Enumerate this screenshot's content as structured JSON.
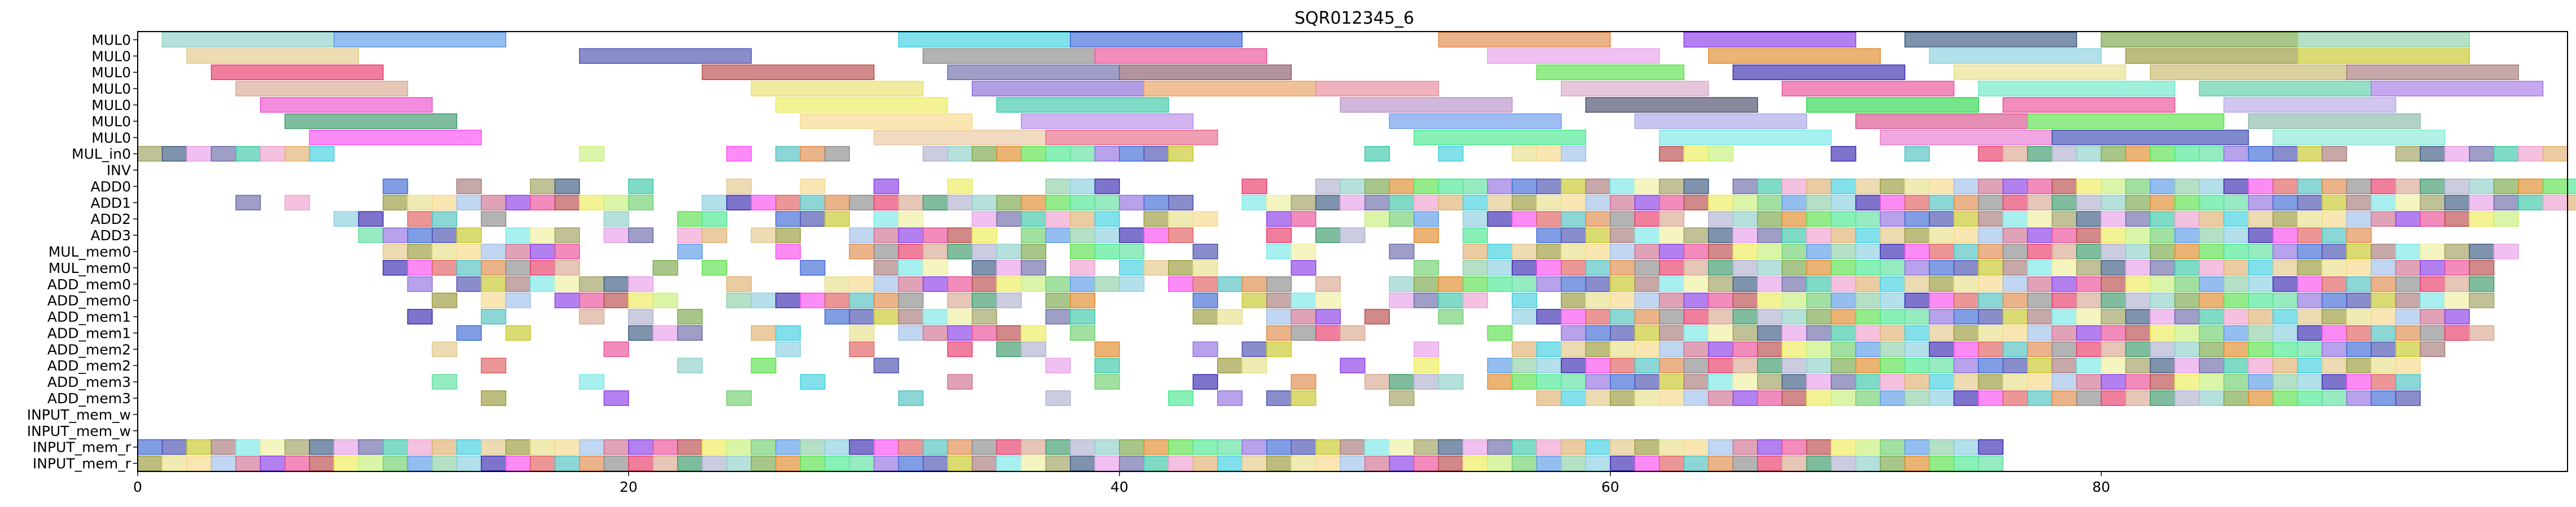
{
  "chart_data": {
    "type": "gantt",
    "title": "SQR012345_6",
    "xlabel": "",
    "ylabel": "",
    "xlim": [
      0,
      99
    ],
    "x_ticks": [
      0,
      20,
      40,
      60,
      80
    ],
    "grid": false,
    "legend": "none",
    "rows": [
      "MUL0",
      "MUL0",
      "MUL0",
      "MUL0",
      "MUL0",
      "MUL0",
      "MUL0",
      "MUL_in0",
      "INV",
      "ADD0",
      "ADD1",
      "ADD2",
      "ADD3",
      "MUL_mem0",
      "MUL_mem0",
      "ADD_mem0",
      "ADD_mem0",
      "ADD_mem1",
      "ADD_mem1",
      "ADD_mem2",
      "ADD_mem2",
      "ADD_mem3",
      "ADD_mem3",
      "INPUT_mem_w",
      "INPUT_mem_w",
      "INPUT_mem_r",
      "INPUT_mem_r"
    ],
    "long_tasks": [
      {
        "row": 0,
        "start": 1,
        "end": 8,
        "color": "#8fd0c8"
      },
      {
        "row": 0,
        "start": 8,
        "end": 15,
        "color": "#5b9be6"
      },
      {
        "row": 0,
        "start": 31,
        "end": 38,
        "color": "#3fd0e0"
      },
      {
        "row": 0,
        "start": 38,
        "end": 45,
        "color": "#3d6ad6"
      },
      {
        "row": 0,
        "start": 53,
        "end": 60,
        "color": "#e08a4a"
      },
      {
        "row": 0,
        "start": 63,
        "end": 70,
        "color": "#8a3ee6"
      },
      {
        "row": 0,
        "start": 72,
        "end": 79,
        "color": "#3a5a80"
      },
      {
        "row": 0,
        "start": 80,
        "end": 88,
        "color": "#7aa84a"
      },
      {
        "row": 0,
        "start": 88,
        "end": 95,
        "color": "#8ed0a8"
      },
      {
        "row": 1,
        "start": 2,
        "end": 9,
        "color": "#e2c88a"
      },
      {
        "row": 1,
        "start": 18,
        "end": 25,
        "color": "#4a50b0"
      },
      {
        "row": 1,
        "start": 32,
        "end": 39,
        "color": "#8a8a8a"
      },
      {
        "row": 1,
        "start": 39,
        "end": 46,
        "color": "#ea4e9a"
      },
      {
        "row": 1,
        "start": 55,
        "end": 62,
        "color": "#e8a0e8"
      },
      {
        "row": 1,
        "start": 64,
        "end": 71,
        "color": "#e08a2a"
      },
      {
        "row": 1,
        "start": 73,
        "end": 80,
        "color": "#8ad0e0"
      },
      {
        "row": 1,
        "start": 81,
        "end": 88,
        "color": "#9a9a3a"
      },
      {
        "row": 1,
        "start": 88,
        "end": 95,
        "color": "#c8c82a"
      },
      {
        "row": 2,
        "start": 3,
        "end": 10,
        "color": "#e83a6a"
      },
      {
        "row": 2,
        "start": 23,
        "end": 30,
        "color": "#b84a4a"
      },
      {
        "row": 2,
        "start": 33,
        "end": 40,
        "color": "#6a6aa8"
      },
      {
        "row": 2,
        "start": 40,
        "end": 47,
        "color": "#8a5a6a"
      },
      {
        "row": 2,
        "start": 57,
        "end": 63,
        "color": "#5ae04a"
      },
      {
        "row": 2,
        "start": 65,
        "end": 72,
        "color": "#3a2ab0"
      },
      {
        "row": 2,
        "start": 74,
        "end": 81,
        "color": "#e8e08a"
      },
      {
        "row": 2,
        "start": 82,
        "end": 90,
        "color": "#c8b86a"
      },
      {
        "row": 2,
        "start": 90,
        "end": 97,
        "color": "#a87a7a"
      },
      {
        "row": 3,
        "start": 4,
        "end": 11,
        "color": "#d8a890"
      },
      {
        "row": 3,
        "start": 25,
        "end": 32,
        "color": "#e8e06a"
      },
      {
        "row": 3,
        "start": 34,
        "end": 41,
        "color": "#8a6ad8"
      },
      {
        "row": 3,
        "start": 41,
        "end": 48,
        "color": "#e8a05a"
      },
      {
        "row": 3,
        "start": 48,
        "end": 53,
        "color": "#e88a9a"
      },
      {
        "row": 3,
        "start": 58,
        "end": 64,
        "color": "#d8a8c8"
      },
      {
        "row": 3,
        "start": 67,
        "end": 74,
        "color": "#ea4e9a"
      },
      {
        "row": 3,
        "start": 75,
        "end": 83,
        "color": "#6ae8c8"
      },
      {
        "row": 3,
        "start": 84,
        "end": 91,
        "color": "#5ad0a8"
      },
      {
        "row": 3,
        "start": 91,
        "end": 98,
        "color": "#a87ae8"
      },
      {
        "row": 4,
        "start": 5,
        "end": 12,
        "color": "#ea4ecc"
      },
      {
        "row": 4,
        "start": 26,
        "end": 33,
        "color": "#ecec5a"
      },
      {
        "row": 4,
        "start": 35,
        "end": 42,
        "color": "#3ac8a8"
      },
      {
        "row": 4,
        "start": 49,
        "end": 56,
        "color": "#b890c8"
      },
      {
        "row": 4,
        "start": 59,
        "end": 66,
        "color": "#4a4a6a"
      },
      {
        "row": 4,
        "start": 68,
        "end": 75,
        "color": "#2ad84a"
      },
      {
        "row": 4,
        "start": 76,
        "end": 83,
        "color": "#ea4e9a"
      },
      {
        "row": 4,
        "start": 85,
        "end": 92,
        "color": "#b8a8e8"
      },
      {
        "row": 5,
        "start": 6,
        "end": 13,
        "color": "#3a9a6a"
      },
      {
        "row": 5,
        "start": 27,
        "end": 34,
        "color": "#f8d88a"
      },
      {
        "row": 5,
        "start": 36,
        "end": 43,
        "color": "#b88ae8"
      },
      {
        "row": 5,
        "start": 51,
        "end": 58,
        "color": "#6a9ae8"
      },
      {
        "row": 5,
        "start": 61,
        "end": 68,
        "color": "#a8a8e8"
      },
      {
        "row": 5,
        "start": 70,
        "end": 77,
        "color": "#d8508a"
      },
      {
        "row": 5,
        "start": 77,
        "end": 85,
        "color": "#5ae04a"
      },
      {
        "row": 5,
        "start": 86,
        "end": 93,
        "color": "#8abaa8"
      },
      {
        "row": 6,
        "start": 7,
        "end": 14,
        "color": "#fa4ef0"
      },
      {
        "row": 6,
        "start": 30,
        "end": 37,
        "color": "#e8c8a0"
      },
      {
        "row": 6,
        "start": 37,
        "end": 44,
        "color": "#e86a8a"
      },
      {
        "row": 6,
        "start": 52,
        "end": 59,
        "color": "#4ae890"
      },
      {
        "row": 6,
        "start": 62,
        "end": 69,
        "color": "#7ae8e8"
      },
      {
        "row": 6,
        "start": 71,
        "end": 78,
        "color": "#ea7ad0"
      },
      {
        "row": 6,
        "start": 78,
        "end": 86,
        "color": "#3a4ab0"
      },
      {
        "row": 6,
        "start": 87,
        "end": 94,
        "color": "#8ae8d8"
      }
    ],
    "short_task_occupancy": [
      "",
      "",
      "",
      "",
      "",
      "",
      "",
      "xxxxxxxx..........x.....x.xxx...xxxxxxxxxxx.......x..x..xxx...xxx....x..x..xxxxxxxxxxxxxxx..xxxxxxx..........",
      "",
      "..........x..x..xx..x...x..x..x..x...xxx.....x..xxxxxxxxxxxxxxxx.xxxxxxxxxxxxxxxxxxxxxxxxxxxxxxxxxxxxx......",
      "....x.x...xxxxxxxxxxx..xxxxxxxxxxxxxxxxxxxx..xxxxxxxxxxxxxxxxxxxxxxxxxxxxxxxxxxxxxxxxxxxxxxxxxxxxxxxxxxx.....",
      "........xx.xx.x....x..xx..xxx.xx..xxxxxx.xxx..xx..xxx.xxxxxxxxx.xxxxxxxxxxxxxxxxxxxxxxxxxxxxxxxxx............",
      ".........xxxxx.xxx.xx.xx.xx..xxxxxx.xxxxxxx...x.xx..x.x..xxxxxxxxxxxxxxxxxxxxxxxxxxxxxxxxxx................",
      "..........xxxxxxxx....x...x..xxxxxxxx.xxx..x..xx...x..xxxxxxxxxxxxxxxxxxxxxxxxxxxxxxxxxxxxxxxxxxx.........",
      "..........xxxxxxxx...x.x...x..xxx.xxx.x.xxxx...x....x.xxxxxxxxxxxxxxxxxxxxxxxxxxxxxxxxxxxxxxxxxx...........",
      "...........x.xxxxxxxx...x...xxxxxxxxxxxxx.xxxxx.x..xxxxxxxxxxxxxxxxxxxxxxxxxxxxxxxxxxxxxxxxxxxxx.........",
      "............x.xx.xxxxx..xxxxxxxx.xxx.xx....x.xxxx..xxxx.x.xxxxxxxxxxxxxxxxxxxxxxxxxxxxxxxxxxxxxx..........",
      "...........x..x...x.x.x.....xxxxxxx..xx....xx.xxx.x..x..xxxxxxxxxxxxxxxxxxxxxxxxxxxxxxxxxxxxxxx...........",
      ".............x.x....xxx..xx..x.xxxxxx.x.......xxxx.....x..xxxxxxxxxxxxxxxxxxxxxxxxxxxxxxxxxxxxxx...........",
      "............x......x......x..x...x.xx..x...x.xx.....x...xxxxxxxxxxxxxxxxxxxxxxxxxxxxxxxxxxxxxx............",
      "..............x.......x..x....x......x.x....xx...x..x..xxxxxxxxxxxxxxxxxxxxxxxxxxxxxxxxxxxxxx..............",
      "............x.....x........x.....x.....x...x...x..xxxx.xxxxxxxxxxxxxxxxxxxxxxxxxxxxxxxxxxxxxx...............",
      "..............x....x....x......x.....x....x.x.xx...x.....xxxxxxxxxxxxxxxxxxxxxxxxxxxxxxxxxxxx................",
      "",
      "",
      "xxxxxxxxxxxxxxxxxxxxxxxxxxxxxxxxxxxxxxxxxxxxxxxxxxxxxxxxxxxxxxxxxxxxxxxxxxxx.......................",
      "xxxxxxxxxxxxxxxxxxxxxxxxxxxxxxxxxxxxxxxxxxxxxxxxxxxxxxxxxxxxxxxxxxxxxxxxxxxx......................."
    ],
    "short_task_colors": [
      "#8fd0c8",
      "#5b9be6",
      "#3fd0e0",
      "#3d6ad6",
      "#e08a4a",
      "#8a3ee6",
      "#3a5a80",
      "#7aa84a",
      "#8ed0a8",
      "#e2c88a",
      "#4a50b0",
      "#8a8a8a",
      "#ea4e9a",
      "#e8a0e8",
      "#e08a2a",
      "#8ad0e0",
      "#9a9a3a",
      "#c8c82a",
      "#e83a6a",
      "#b84a4a",
      "#6a6aa8",
      "#5ae04a",
      "#3a2ab0",
      "#e8e08a",
      "#a87a7a",
      "#d8a890",
      "#ecec5a",
      "#3ac8a8",
      "#4ae890",
      "#fa4ef0",
      "#f8d88a",
      "#7ae8e8",
      "#3a9a6a",
      "#c8f07a",
      "#f0a0d0",
      "#60e0a0",
      "#e06060",
      "#a0c0e8",
      "#f0f0a0",
      "#b0b0d0",
      "#70d070",
      "#e0b070",
      "#9070e0",
      "#50c0c0",
      "#d07090",
      "#a0a060"
    ]
  }
}
